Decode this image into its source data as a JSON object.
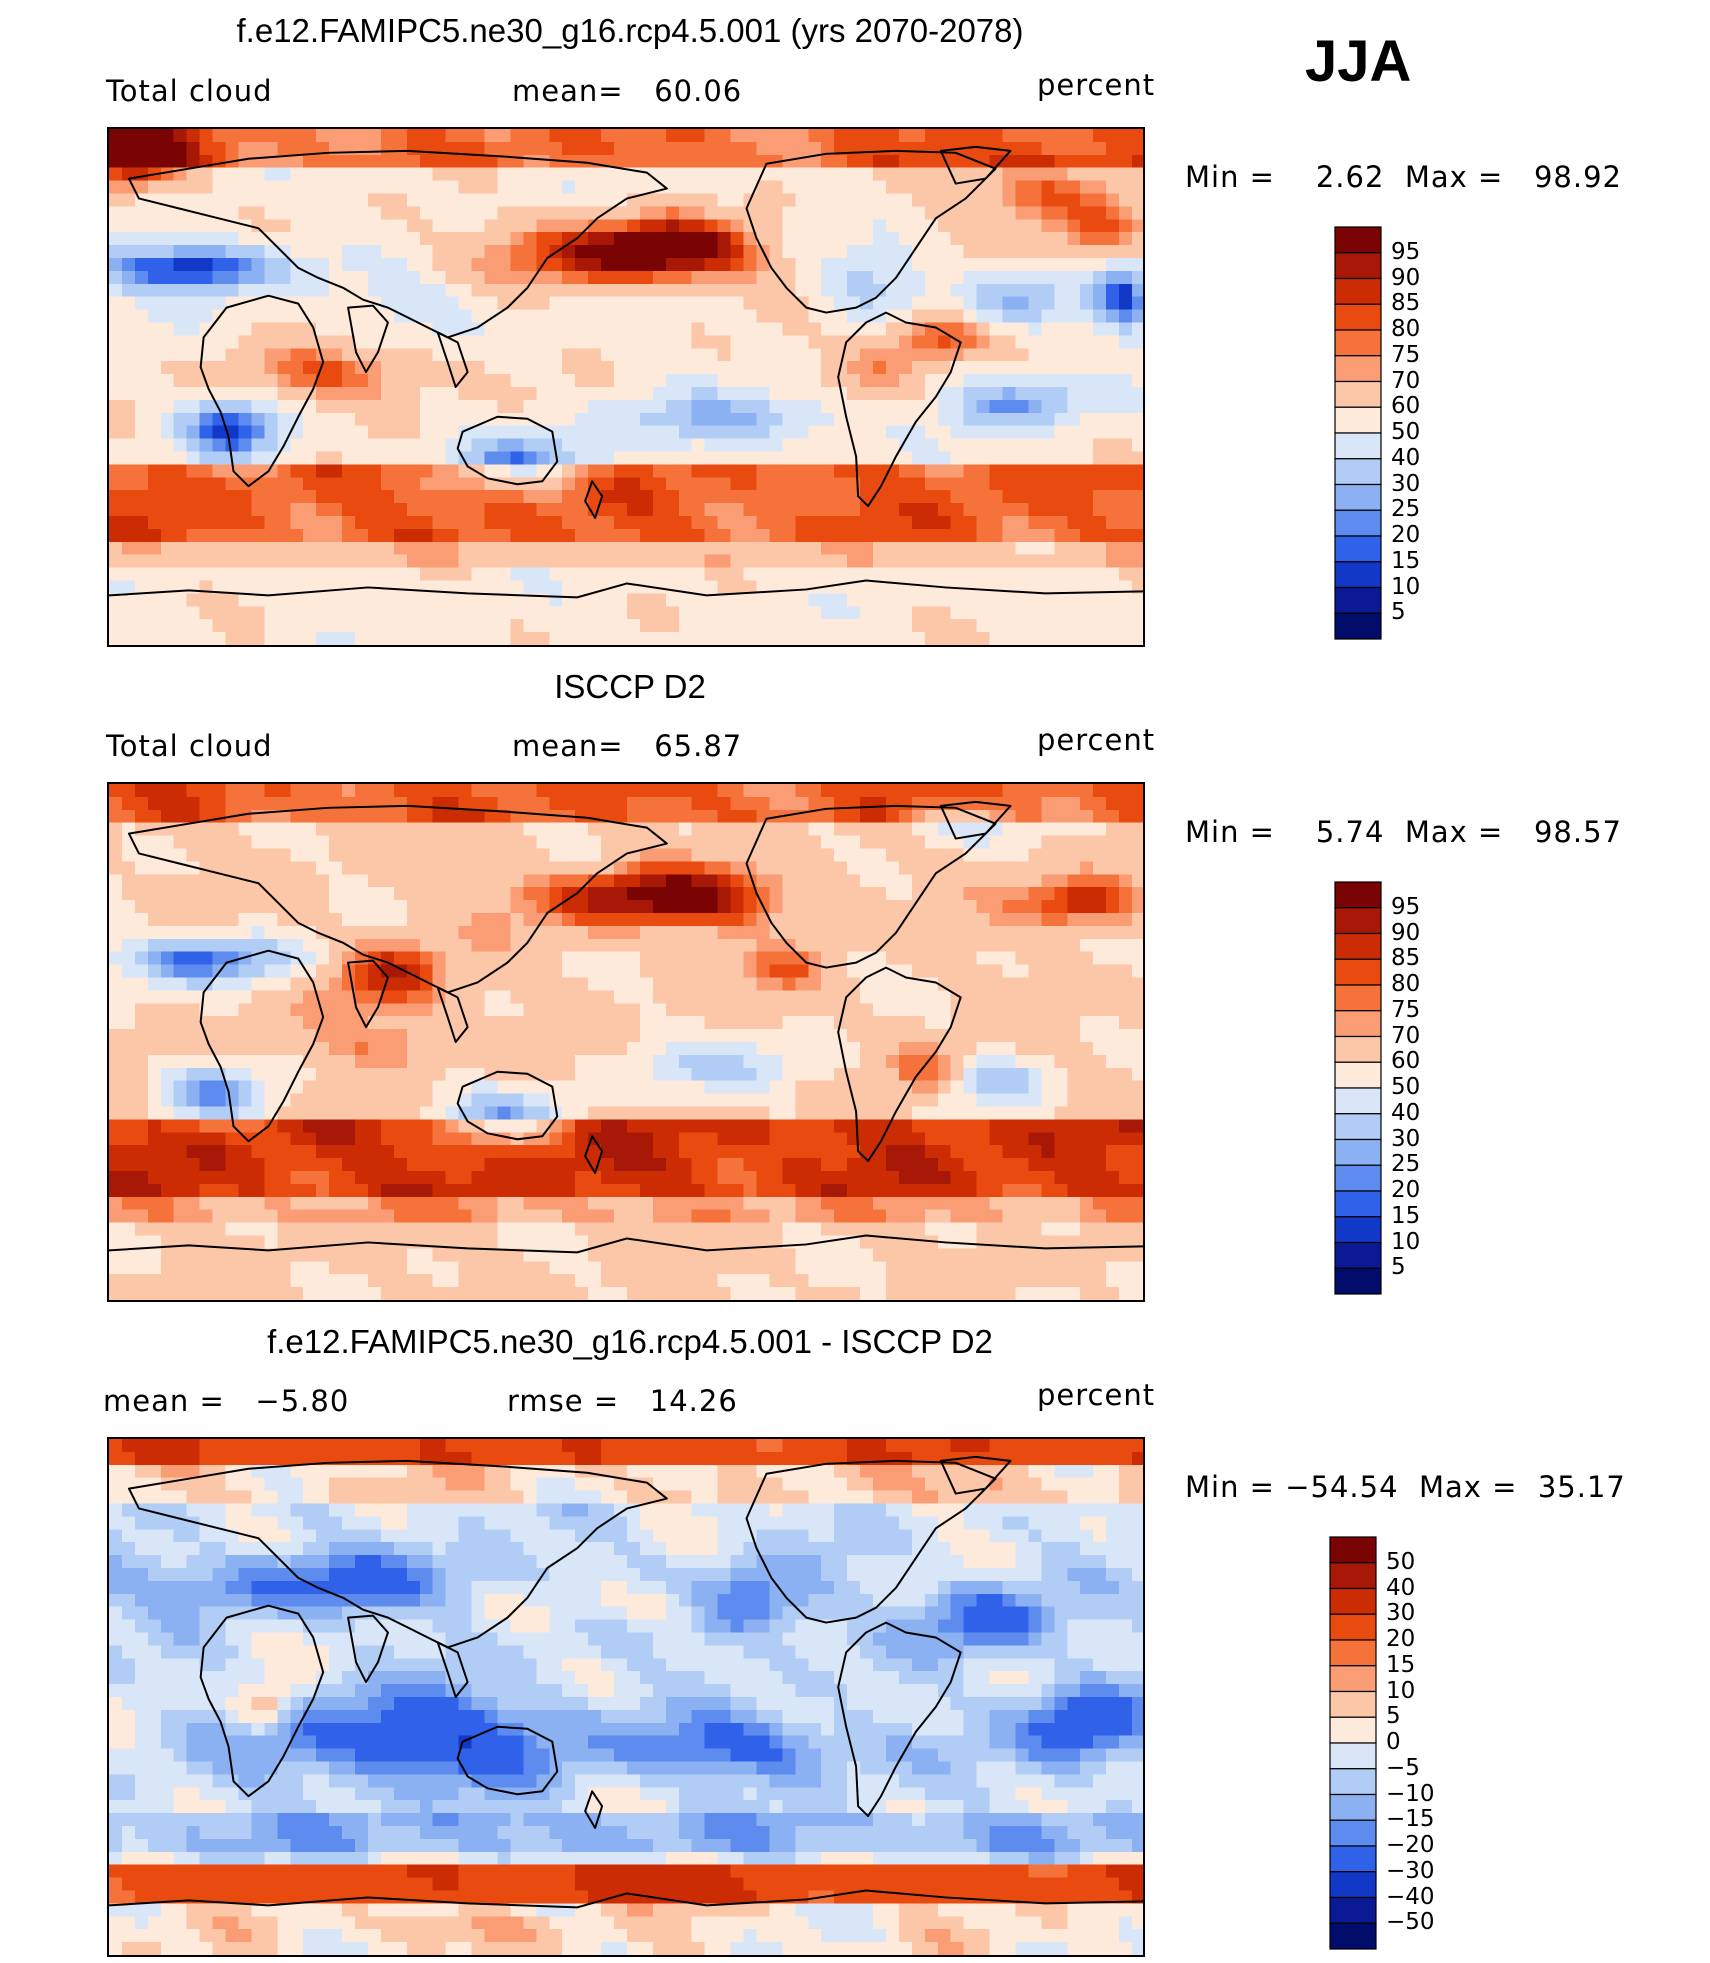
{
  "season": "JJA",
  "panels": [
    {
      "title": "f.e12.FAMIPC5.ne30_g16.rcp4.5.001 (yrs 2070-2078)",
      "left_text": "Total cloud",
      "center_text": "mean=   60.06",
      "right_text": "percent",
      "minmax": "Min =    2.62  Max =   98.92",
      "field": "model"
    },
    {
      "title": "ISCCP D2",
      "left_text": "Total cloud",
      "center_text": "mean=   65.87",
      "right_text": "percent",
      "minmax": "Min =    5.74  Max =   98.57",
      "field": "obs"
    },
    {
      "title": "f.e12.FAMIPC5.ne30_g16.rcp4.5.001 - ISCCP D2",
      "left_text": "mean =   −5.80",
      "center_text": "rmse =   14.26",
      "right_text": "percent",
      "minmax": "Min = −54.54  Max =  35.17",
      "field": "diff"
    }
  ],
  "colorbars": {
    "absolute": {
      "labels": [
        "95",
        "90",
        "85",
        "80",
        "75",
        "70",
        "60",
        "50",
        "40",
        "30",
        "25",
        "20",
        "15",
        "10",
        "5"
      ],
      "colors": [
        "#7a0403",
        "#a81806",
        "#cc2c04",
        "#e84a10",
        "#f5733a",
        "#fa9d74",
        "#fcc6a8",
        "#fdeadb",
        "#d8e6f8",
        "#b2cdf5",
        "#8bb1f2",
        "#5d8cee",
        "#2f62e8",
        "#1238c8",
        "#0a1a94",
        "#020c6a"
      ]
    },
    "difference": {
      "labels": [
        "50",
        "40",
        "30",
        "20",
        "15",
        "10",
        "5",
        "0",
        "−5",
        "−10",
        "−15",
        "−20",
        "−30",
        "−40",
        "−50"
      ],
      "colors": [
        "#7a0403",
        "#a81806",
        "#cc2c04",
        "#e84a10",
        "#f5733a",
        "#fa9d74",
        "#fcc6a8",
        "#fdeadb",
        "#d8e6f8",
        "#b2cdf5",
        "#8bb1f2",
        "#5d8cee",
        "#2f62e8",
        "#1238c8",
        "#0a1a94",
        "#020c6a"
      ]
    }
  },
  "chart_data": [
    {
      "type": "heatmap",
      "title": "f.e12.FAMIPC5.ne30_g16.rcp4.5.001 (yrs 2070-2078)",
      "subtitle": "Total cloud",
      "units": "percent",
      "mean": 60.06,
      "min": 2.62,
      "max": 98.92,
      "contour_levels": [
        5,
        10,
        15,
        20,
        25,
        30,
        40,
        50,
        60,
        70,
        75,
        80,
        85,
        90,
        95
      ]
    },
    {
      "type": "heatmap",
      "title": "ISCCP D2",
      "subtitle": "Total cloud",
      "units": "percent",
      "mean": 65.87,
      "min": 5.74,
      "max": 98.57,
      "contour_levels": [
        5,
        10,
        15,
        20,
        25,
        30,
        40,
        50,
        60,
        70,
        75,
        80,
        85,
        90,
        95
      ]
    },
    {
      "type": "heatmap",
      "title": "f.e12.FAMIPC5.ne30_g16.rcp4.5.001 - ISCCP D2",
      "units": "percent",
      "mean": -5.8,
      "rmse": 14.26,
      "min": -54.54,
      "max": 35.17,
      "contour_levels": [
        -50,
        -40,
        -30,
        -20,
        -15,
        -10,
        -5,
        0,
        5,
        10,
        15,
        20,
        30,
        40,
        50
      ]
    }
  ]
}
